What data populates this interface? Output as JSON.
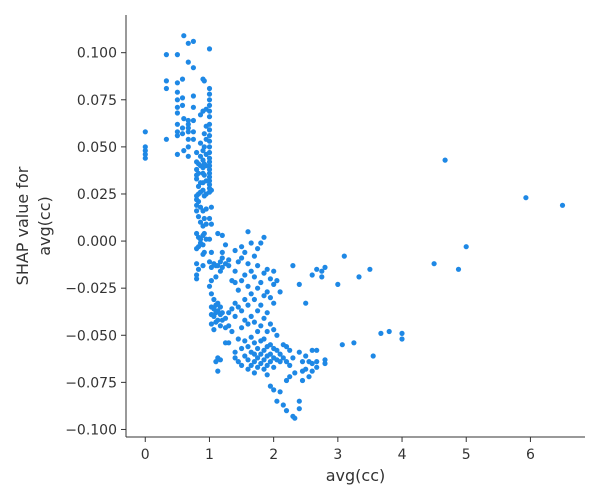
{
  "chart_data": {
    "type": "scatter",
    "title": "",
    "xlabel": "avg(cc)",
    "ylabel_line1": "SHAP value for",
    "ylabel_line2": "avg(cc)",
    "xlim": [
      -0.3,
      6.85
    ],
    "ylim": [
      -0.104,
      0.12
    ],
    "xticks": [
      0,
      1,
      2,
      3,
      4,
      5,
      6
    ],
    "yticks": [
      -0.1,
      -0.075,
      -0.05,
      -0.025,
      0.0,
      0.025,
      0.05,
      0.075,
      0.1
    ],
    "xtick_labels": [
      "0",
      "1",
      "2",
      "3",
      "4",
      "5",
      "6"
    ],
    "ytick_labels": [
      "−0.100",
      "−0.075",
      "−0.050",
      "−0.025",
      "0.000",
      "0.025",
      "0.050",
      "0.075",
      "0.100"
    ],
    "grid": false,
    "point_color": "#1E88E5",
    "points": [
      [
        0.0,
        0.058
      ],
      [
        0.0,
        0.05
      ],
      [
        0.0,
        0.048
      ],
      [
        0.0,
        0.046
      ],
      [
        0.0,
        0.044
      ],
      [
        0.33,
        0.099
      ],
      [
        0.33,
        0.085
      ],
      [
        0.33,
        0.081
      ],
      [
        0.33,
        0.054
      ],
      [
        0.5,
        0.099
      ],
      [
        0.5,
        0.084
      ],
      [
        0.5,
        0.079
      ],
      [
        0.5,
        0.075
      ],
      [
        0.5,
        0.071
      ],
      [
        0.5,
        0.068
      ],
      [
        0.5,
        0.062
      ],
      [
        0.5,
        0.058
      ],
      [
        0.5,
        0.056
      ],
      [
        0.5,
        0.046
      ],
      [
        0.58,
        0.086
      ],
      [
        0.58,
        0.076
      ],
      [
        0.58,
        0.072
      ],
      [
        0.58,
        0.06
      ],
      [
        0.58,
        0.057
      ],
      [
        0.6,
        0.109
      ],
      [
        0.6,
        0.065
      ],
      [
        0.6,
        0.048
      ],
      [
        0.67,
        0.105
      ],
      [
        0.67,
        0.095
      ],
      [
        0.67,
        0.064
      ],
      [
        0.67,
        0.062
      ],
      [
        0.67,
        0.06
      ],
      [
        0.67,
        0.058
      ],
      [
        0.67,
        0.054
      ],
      [
        0.67,
        0.05
      ],
      [
        0.67,
        0.045
      ],
      [
        0.75,
        0.106
      ],
      [
        0.75,
        0.092
      ],
      [
        0.75,
        0.077
      ],
      [
        0.75,
        0.071
      ],
      [
        0.75,
        0.064
      ],
      [
        0.75,
        0.058
      ],
      [
        0.75,
        0.054
      ],
      [
        0.8,
        0.047
      ],
      [
        0.8,
        0.042
      ],
      [
        0.8,
        0.038
      ],
      [
        0.8,
        0.035
      ],
      [
        0.8,
        0.033
      ],
      [
        0.8,
        0.024
      ],
      [
        0.8,
        0.022
      ],
      [
        0.8,
        0.019
      ],
      [
        0.8,
        0.016
      ],
      [
        0.8,
        0.004
      ],
      [
        0.8,
        -0.004
      ],
      [
        0.8,
        -0.012
      ],
      [
        0.8,
        -0.018
      ],
      [
        0.8,
        -0.02
      ],
      [
        0.83,
        0.041
      ],
      [
        0.83,
        0.036
      ],
      [
        0.83,
        0.029
      ],
      [
        0.83,
        0.025
      ],
      [
        0.83,
        0.021
      ],
      [
        0.83,
        0.013
      ],
      [
        0.83,
        0.002
      ],
      [
        0.83,
        -0.003
      ],
      [
        0.83,
        -0.015
      ],
      [
        0.86,
        0.067
      ],
      [
        0.86,
        0.052
      ],
      [
        0.86,
        0.045
      ],
      [
        0.86,
        0.04
      ],
      [
        0.86,
        0.031
      ],
      [
        0.86,
        0.026
      ],
      [
        0.86,
        0.018
      ],
      [
        0.86,
        0.01
      ],
      [
        0.86,
        0.001
      ],
      [
        0.86,
        -0.001
      ],
      [
        0.9,
        0.086
      ],
      [
        0.9,
        0.069
      ],
      [
        0.9,
        0.048
      ],
      [
        0.9,
        0.043
      ],
      [
        0.9,
        0.039
      ],
      [
        0.9,
        0.036
      ],
      [
        0.9,
        0.031
      ],
      [
        0.9,
        0.027
      ],
      [
        0.9,
        0.016
      ],
      [
        0.9,
        0.008
      ],
      [
        0.9,
        0.003
      ],
      [
        0.9,
        -0.002
      ],
      [
        0.9,
        -0.007
      ],
      [
        0.9,
        -0.013
      ],
      [
        0.92,
        0.085
      ],
      [
        0.92,
        0.057
      ],
      [
        0.92,
        0.05
      ],
      [
        0.92,
        0.041
      ],
      [
        0.92,
        0.035
      ],
      [
        0.92,
        0.024
      ],
      [
        0.92,
        0.012
      ],
      [
        0.92,
        0.004
      ],
      [
        0.92,
        -0.006
      ],
      [
        0.95,
        0.07
      ],
      [
        0.95,
        0.061
      ],
      [
        0.95,
        0.054
      ],
      [
        0.95,
        0.046
      ],
      [
        0.95,
        0.04
      ],
      [
        0.95,
        0.032
      ],
      [
        0.95,
        0.025
      ],
      [
        0.95,
        0.017
      ],
      [
        0.95,
        0.009
      ],
      [
        0.95,
        0.001
      ],
      [
        1.0,
        0.102
      ],
      [
        1.0,
        0.081
      ],
      [
        1.0,
        0.078
      ],
      [
        1.0,
        0.075
      ],
      [
        1.0,
        0.072
      ],
      [
        1.0,
        0.069
      ],
      [
        1.0,
        0.066
      ],
      [
        1.0,
        0.062
      ],
      [
        1.0,
        0.059
      ],
      [
        1.0,
        0.056
      ],
      [
        1.0,
        0.053
      ],
      [
        1.0,
        0.05
      ],
      [
        1.0,
        0.047
      ],
      [
        1.0,
        0.044
      ],
      [
        1.0,
        0.042
      ],
      [
        1.0,
        0.04
      ],
      [
        1.0,
        0.038
      ],
      [
        1.0,
        0.036
      ],
      [
        1.0,
        0.034
      ],
      [
        1.0,
        0.032
      ],
      [
        1.0,
        0.03
      ],
      [
        1.0,
        0.028
      ],
      [
        1.0,
        0.026
      ],
      [
        1.0,
        0.012
      ],
      [
        1.0,
        0.001
      ],
      [
        1.0,
        -0.011
      ],
      [
        1.0,
        -0.024
      ],
      [
        1.03,
        0.027
      ],
      [
        1.03,
        0.018
      ],
      [
        1.03,
        0.009
      ],
      [
        1.03,
        -0.006
      ],
      [
        1.03,
        -0.014
      ],
      [
        1.03,
        -0.021
      ],
      [
        1.03,
        -0.028
      ],
      [
        1.03,
        -0.035
      ],
      [
        1.03,
        -0.039
      ],
      [
        1.03,
        -0.044
      ],
      [
        1.07,
        -0.012
      ],
      [
        1.07,
        -0.031
      ],
      [
        1.07,
        -0.036
      ],
      [
        1.07,
        -0.04
      ],
      [
        1.07,
        -0.047
      ],
      [
        1.1,
        -0.013
      ],
      [
        1.1,
        -0.019
      ],
      [
        1.1,
        -0.034
      ],
      [
        1.1,
        -0.038
      ],
      [
        1.1,
        -0.043
      ],
      [
        1.1,
        -0.064
      ],
      [
        1.13,
        0.004
      ],
      [
        1.13,
        -0.013
      ],
      [
        1.13,
        -0.033
      ],
      [
        1.13,
        -0.037
      ],
      [
        1.13,
        -0.042
      ],
      [
        1.13,
        -0.062
      ],
      [
        1.13,
        -0.069
      ],
      [
        1.17,
        -0.011
      ],
      [
        1.17,
        -0.016
      ],
      [
        1.17,
        -0.035
      ],
      [
        1.17,
        -0.039
      ],
      [
        1.17,
        -0.045
      ],
      [
        1.17,
        -0.063
      ],
      [
        1.2,
        0.003
      ],
      [
        1.2,
        -0.006
      ],
      [
        1.2,
        -0.009
      ],
      [
        1.2,
        -0.014
      ],
      [
        1.2,
        -0.038
      ],
      [
        1.2,
        -0.042
      ],
      [
        1.25,
        -0.002
      ],
      [
        1.25,
        -0.012
      ],
      [
        1.25,
        -0.041
      ],
      [
        1.25,
        -0.046
      ],
      [
        1.25,
        -0.054
      ],
      [
        1.3,
        -0.01
      ],
      [
        1.3,
        -0.013
      ],
      [
        1.3,
        -0.038
      ],
      [
        1.3,
        -0.045
      ],
      [
        1.3,
        -0.054
      ],
      [
        1.35,
        -0.021
      ],
      [
        1.35,
        -0.036
      ],
      [
        1.35,
        -0.048
      ],
      [
        1.4,
        -0.005
      ],
      [
        1.4,
        -0.016
      ],
      [
        1.4,
        -0.022
      ],
      [
        1.4,
        -0.033
      ],
      [
        1.4,
        -0.04
      ],
      [
        1.4,
        -0.059
      ],
      [
        1.4,
        -0.062
      ],
      [
        1.45,
        -0.011
      ],
      [
        1.45,
        -0.026
      ],
      [
        1.45,
        -0.035
      ],
      [
        1.45,
        -0.052
      ],
      [
        1.45,
        -0.064
      ],
      [
        1.5,
        -0.003
      ],
      [
        1.5,
        -0.009
      ],
      [
        1.5,
        -0.021
      ],
      [
        1.5,
        -0.037
      ],
      [
        1.5,
        -0.046
      ],
      [
        1.5,
        -0.057
      ],
      [
        1.5,
        -0.066
      ],
      [
        1.55,
        -0.006
      ],
      [
        1.55,
        -0.018
      ],
      [
        1.55,
        -0.031
      ],
      [
        1.55,
        -0.042
      ],
      [
        1.55,
        -0.053
      ],
      [
        1.55,
        -0.061
      ],
      [
        1.6,
        0.005
      ],
      [
        1.6,
        -0.012
      ],
      [
        1.6,
        -0.024
      ],
      [
        1.6,
        -0.034
      ],
      [
        1.6,
        -0.044
      ],
      [
        1.6,
        -0.056
      ],
      [
        1.6,
        -0.063
      ],
      [
        1.6,
        -0.068
      ],
      [
        1.65,
        -0.001
      ],
      [
        1.65,
        -0.016
      ],
      [
        1.65,
        -0.028
      ],
      [
        1.65,
        -0.04
      ],
      [
        1.65,
        -0.051
      ],
      [
        1.65,
        -0.059
      ],
      [
        1.65,
        -0.066
      ],
      [
        1.7,
        -0.008
      ],
      [
        1.7,
        -0.019
      ],
      [
        1.7,
        -0.031
      ],
      [
        1.7,
        -0.043
      ],
      [
        1.7,
        -0.054
      ],
      [
        1.7,
        -0.06
      ],
      [
        1.7,
        -0.064
      ],
      [
        1.7,
        -0.07
      ],
      [
        1.75,
        -0.004
      ],
      [
        1.75,
        -0.013
      ],
      [
        1.75,
        -0.025
      ],
      [
        1.75,
        -0.037
      ],
      [
        1.75,
        -0.048
      ],
      [
        1.75,
        -0.057
      ],
      [
        1.75,
        -0.062
      ],
      [
        1.75,
        -0.067
      ],
      [
        1.8,
        -0.001
      ],
      [
        1.8,
        -0.022
      ],
      [
        1.8,
        -0.034
      ],
      [
        1.8,
        -0.045
      ],
      [
        1.8,
        -0.053
      ],
      [
        1.8,
        -0.06
      ],
      [
        1.8,
        -0.065
      ],
      [
        1.85,
        0.002
      ],
      [
        1.85,
        -0.017
      ],
      [
        1.85,
        -0.029
      ],
      [
        1.85,
        -0.041
      ],
      [
        1.85,
        -0.052
      ],
      [
        1.85,
        -0.058
      ],
      [
        1.85,
        -0.063
      ],
      [
        1.85,
        -0.068
      ],
      [
        1.9,
        -0.015
      ],
      [
        1.9,
        -0.027
      ],
      [
        1.9,
        -0.038
      ],
      [
        1.9,
        -0.048
      ],
      [
        1.9,
        -0.056
      ],
      [
        1.9,
        -0.061
      ],
      [
        1.9,
        -0.066
      ],
      [
        1.9,
        -0.071
      ],
      [
        1.95,
        -0.02
      ],
      [
        1.95,
        -0.03
      ],
      [
        1.95,
        -0.044
      ],
      [
        1.95,
        -0.055
      ],
      [
        1.95,
        -0.06
      ],
      [
        1.95,
        -0.064
      ],
      [
        1.95,
        -0.077
      ],
      [
        2.0,
        -0.016
      ],
      [
        2.0,
        -0.023
      ],
      [
        2.0,
        -0.033
      ],
      [
        2.0,
        -0.047
      ],
      [
        2.0,
        -0.057
      ],
      [
        2.0,
        -0.062
      ],
      [
        2.0,
        -0.067
      ],
      [
        2.0,
        -0.079
      ],
      [
        2.05,
        -0.021
      ],
      [
        2.05,
        -0.05
      ],
      [
        2.05,
        -0.058
      ],
      [
        2.05,
        -0.063
      ],
      [
        2.05,
        -0.085
      ],
      [
        2.1,
        -0.027
      ],
      [
        2.1,
        -0.06
      ],
      [
        2.1,
        -0.064
      ],
      [
        2.1,
        -0.08
      ],
      [
        2.15,
        -0.055
      ],
      [
        2.15,
        -0.062
      ],
      [
        2.15,
        -0.087
      ],
      [
        2.2,
        -0.056
      ],
      [
        2.2,
        -0.064
      ],
      [
        2.2,
        -0.074
      ],
      [
        2.2,
        -0.09
      ],
      [
        2.25,
        -0.058
      ],
      [
        2.25,
        -0.066
      ],
      [
        2.25,
        -0.072
      ],
      [
        2.3,
        -0.013
      ],
      [
        2.3,
        -0.062
      ],
      [
        2.3,
        -0.093
      ],
      [
        2.33,
        -0.07
      ],
      [
        2.33,
        -0.094
      ],
      [
        2.4,
        -0.023
      ],
      [
        2.4,
        -0.059
      ],
      [
        2.4,
        -0.089
      ],
      [
        2.4,
        -0.085
      ],
      [
        2.45,
        -0.064
      ],
      [
        2.45,
        -0.069
      ],
      [
        2.45,
        -0.074
      ],
      [
        2.5,
        -0.033
      ],
      [
        2.5,
        -0.061
      ],
      [
        2.5,
        -0.068
      ],
      [
        2.55,
        -0.064
      ],
      [
        2.55,
        -0.072
      ],
      [
        2.6,
        -0.018
      ],
      [
        2.6,
        -0.058
      ],
      [
        2.6,
        -0.065
      ],
      [
        2.6,
        -0.069
      ],
      [
        2.67,
        -0.015
      ],
      [
        2.67,
        -0.058
      ],
      [
        2.67,
        -0.064
      ],
      [
        2.67,
        -0.067
      ],
      [
        2.75,
        -0.019
      ],
      [
        2.75,
        -0.016
      ],
      [
        2.8,
        -0.014
      ],
      [
        2.8,
        -0.063
      ],
      [
        2.8,
        -0.065
      ],
      [
        3.0,
        -0.023
      ],
      [
        3.07,
        -0.055
      ],
      [
        3.1,
        -0.008
      ],
      [
        3.25,
        -0.054
      ],
      [
        3.33,
        -0.019
      ],
      [
        3.5,
        -0.015
      ],
      [
        3.55,
        -0.061
      ],
      [
        3.67,
        -0.049
      ],
      [
        3.8,
        -0.048
      ],
      [
        4.0,
        -0.049
      ],
      [
        4.0,
        -0.052
      ],
      [
        4.5,
        -0.012
      ],
      [
        4.67,
        0.043
      ],
      [
        4.88,
        -0.015
      ],
      [
        5.0,
        -0.003
      ],
      [
        5.93,
        0.023
      ],
      [
        6.5,
        0.019
      ]
    ]
  }
}
